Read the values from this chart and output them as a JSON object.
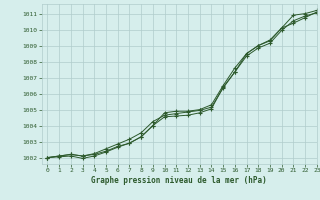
{
  "title": "Graphe pression niveau de la mer (hPa)",
  "bg_color": "#d6eeec",
  "plot_bg": "#d6eeec",
  "grid_color": "#b0cccc",
  "line_color": "#2d5a2d",
  "tick_color": "#2d5a2d",
  "xlim": [
    -0.5,
    23
  ],
  "ylim": [
    1001.6,
    1011.6
  ],
  "yticks": [
    1002,
    1003,
    1004,
    1005,
    1006,
    1007,
    1008,
    1009,
    1010,
    1011
  ],
  "xticks": [
    0,
    1,
    2,
    3,
    4,
    5,
    6,
    7,
    8,
    9,
    10,
    11,
    12,
    13,
    14,
    15,
    16,
    17,
    18,
    19,
    20,
    21,
    22,
    23
  ],
  "line1": [
    1002.0,
    1002.1,
    1002.2,
    1002.1,
    1002.2,
    1002.4,
    1002.7,
    1002.9,
    1003.3,
    1004.0,
    1004.8,
    1004.9,
    1004.9,
    1005.0,
    1005.3,
    1006.5,
    1007.6,
    1008.5,
    1009.0,
    1009.3,
    1010.1,
    1010.9,
    1011.0,
    1011.2
  ],
  "line2": [
    1002.0,
    1002.05,
    1002.1,
    1001.95,
    1002.1,
    1002.35,
    1002.65,
    1002.9,
    1003.3,
    1004.0,
    1004.55,
    1004.6,
    1004.65,
    1004.8,
    1005.05,
    1006.4,
    1007.35,
    1008.5,
    1009.0,
    1009.35,
    1010.1,
    1010.4,
    1010.75,
    1011.1
  ],
  "line3": [
    1002.0,
    1002.1,
    1002.2,
    1002.1,
    1002.25,
    1002.55,
    1002.85,
    1003.15,
    1003.55,
    1004.25,
    1004.65,
    1004.75,
    1004.85,
    1004.95,
    1005.15,
    1006.35,
    1007.35,
    1008.35,
    1008.85,
    1009.15,
    1009.95,
    1010.55,
    1010.85,
    1011.05
  ]
}
